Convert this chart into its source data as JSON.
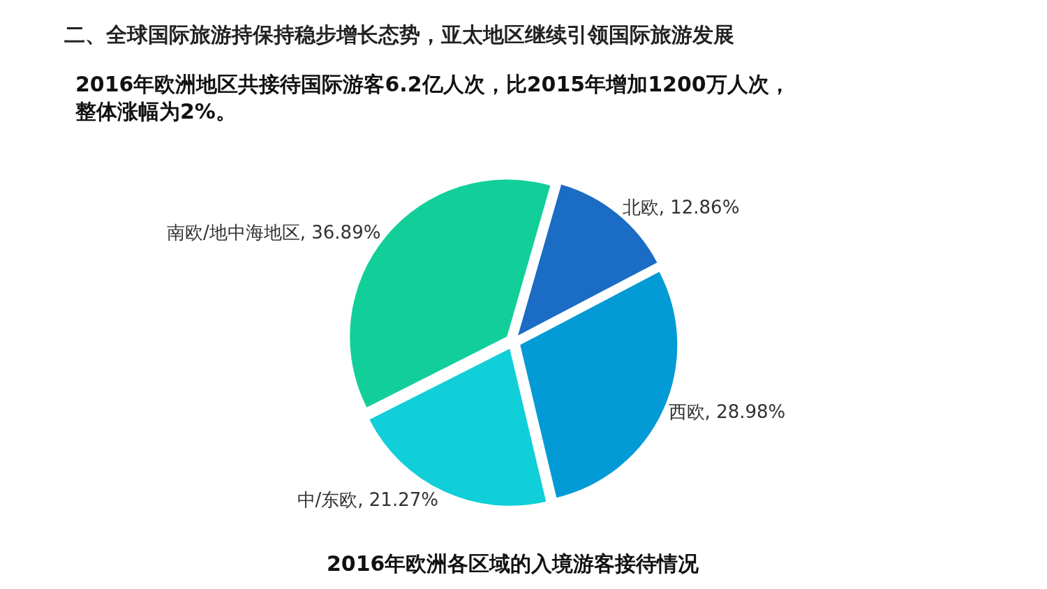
{
  "chart_data": {
    "type": "pie",
    "title": "2016年欧洲各区域的入境游客接待情况",
    "subtitle": "2016年欧洲地区共接待国际游客6.2亿人次，比2015年增加1200万人次，整体涨幅为2%。",
    "annotations": [
      "二、全球国际旅游持保持稳步增长态势，亚太地区继续引领国际旅游发展"
    ],
    "categories": [
      "北欧",
      "西欧",
      "中/东欧",
      "南欧/地中海地区"
    ],
    "values": [
      12.86,
      28.98,
      21.27,
      36.89
    ],
    "value_labels": [
      "12.86%",
      "28.98%",
      "21.27%",
      "36.89%"
    ],
    "colors": [
      "#1a6cc4",
      "#039bd6",
      "#10cfd8",
      "#12cf9a"
    ],
    "legend": false
  }
}
